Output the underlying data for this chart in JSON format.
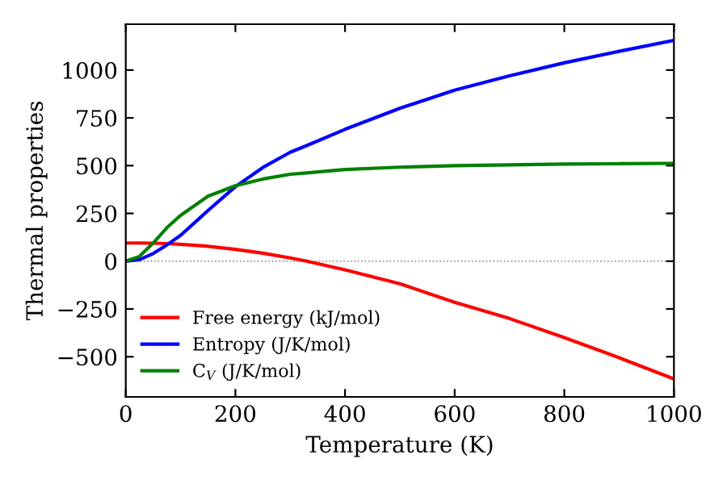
{
  "chart_data": {
    "type": "line",
    "xlabel": "Temperature (K)",
    "ylabel": "Thermal properties",
    "x": [
      0,
      25,
      50,
      75,
      100,
      150,
      200,
      250,
      300,
      330,
      400,
      500,
      600,
      700,
      800,
      900,
      1000
    ],
    "series": [
      {
        "name": "Free energy (kJ/mol)",
        "color": "#ff0000",
        "values": [
          95,
          95,
          94,
          92,
          88,
          78,
          62,
          42,
          17,
          0,
          -45,
          -118,
          -215,
          -300,
          -400,
          -505,
          -616
        ]
      },
      {
        "name": "Entropy (J/K/mol)",
        "color": "#0000ff",
        "values": [
          0,
          8,
          40,
          85,
          135,
          265,
          390,
          490,
          570,
          605,
          690,
          800,
          895,
          970,
          1038,
          1098,
          1156
        ]
      },
      {
        "name": "C$_{V}$ (J/K/mol)",
        "color": "#008000",
        "values": [
          0,
          25,
          95,
          175,
          240,
          340,
          395,
          430,
          455,
          462,
          480,
          492,
          500,
          504,
          508,
          510,
          512
        ]
      }
    ],
    "xlim": [
      0,
      1000
    ],
    "ylim": [
      -710,
      1240
    ],
    "xticks": [
      0,
      200,
      400,
      600,
      800,
      1000
    ],
    "yticks": [
      -500,
      -250,
      0,
      250,
      500,
      750,
      1000
    ],
    "ref_lines": [
      {
        "axis": "y",
        "value": 0,
        "color": "#808080",
        "line_style": "dotted"
      }
    ],
    "legend": "bottom left",
    "grid": false,
    "line_style": "solid",
    "marker": "none"
  }
}
